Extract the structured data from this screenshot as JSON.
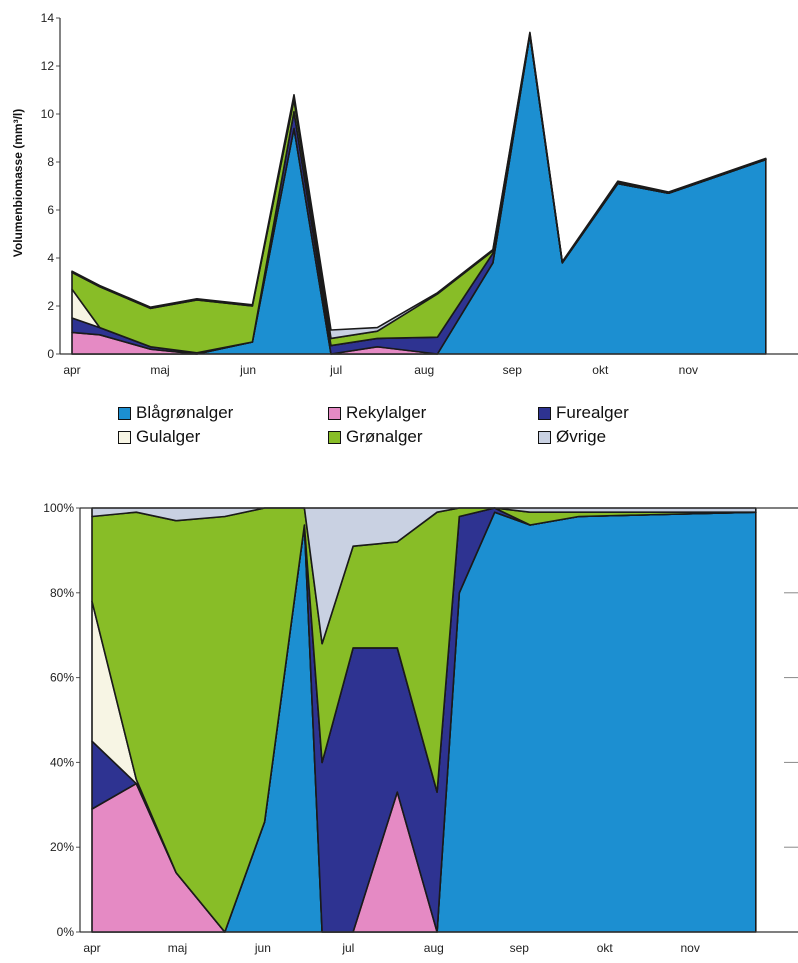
{
  "colors": {
    "Blågrønalger": "#1c8fd1",
    "Rekylalger": "#e58ac4",
    "Furealger": "#2e3391",
    "Gulalger": "#f7f5e4",
    "Grønalger": "#88bd27",
    "Øvrige": "#c9d1e2"
  },
  "legend": {
    "items": [
      "Blågrønalger",
      "Rekylalger",
      "Furealger",
      "Gulalger",
      "Grønalger",
      "Øvrige"
    ],
    "placement": "between charts"
  },
  "chart_data": [
    {
      "type": "area",
      "stacked": true,
      "ylabel": "Volumenbiomasse (mm³/l)",
      "ylim": [
        0,
        14
      ],
      "yticks": [
        "0",
        "2",
        "4",
        "6",
        "8",
        "10",
        "12",
        "14"
      ],
      "month_ticks": [
        "apr",
        "maj",
        "jun",
        "jul",
        "aug",
        "sep",
        "okt",
        "nov"
      ],
      "x": [
        0,
        0.3,
        0.85,
        1.35,
        1.95,
        2.4,
        2.8,
        3.3,
        3.95,
        4.55,
        4.95,
        5.3,
        5.9,
        6.45,
        7.5
      ],
      "series": [
        {
          "name": "Blågrønalger",
          "values": [
            0,
            0,
            0,
            0,
            0.5,
            9.4,
            0,
            0,
            0,
            3.8,
            13.3,
            3.8,
            7.1,
            6.7,
            8.1
          ]
        },
        {
          "name": "Rekylalger",
          "values": [
            0.9,
            0.8,
            0.2,
            0,
            0,
            0,
            0,
            0.3,
            0,
            0,
            0,
            0,
            0,
            0,
            0
          ]
        },
        {
          "name": "Furealger",
          "values": [
            0.6,
            0.3,
            0.1,
            0.05,
            0,
            0.7,
            0.35,
            0.35,
            0.7,
            0.4,
            0,
            0,
            0,
            0,
            0
          ]
        },
        {
          "name": "Gulalger",
          "values": [
            1.2,
            0,
            0,
            0,
            0,
            0,
            0,
            0,
            0,
            0,
            0,
            0,
            0,
            0,
            0
          ]
        },
        {
          "name": "Grønalger",
          "values": [
            0.7,
            1.7,
            1.6,
            2.2,
            1.5,
            0.5,
            0.3,
            0.3,
            1.8,
            0.1,
            0.05,
            0,
            0.05,
            0,
            0
          ]
        },
        {
          "name": "Øvrige",
          "values": [
            0.05,
            0.05,
            0.05,
            0.05,
            0.05,
            0.2,
            0.35,
            0.15,
            0.05,
            0.05,
            0.05,
            0.05,
            0.05,
            0.05,
            0.05
          ]
        }
      ]
    },
    {
      "type": "area",
      "stacked": true,
      "percent": true,
      "ylim": [
        0,
        100
      ],
      "yticks": [
        "0%",
        "20%",
        "40%",
        "60%",
        "80%",
        "100%"
      ],
      "month_ticks": [
        "apr",
        "maj",
        "jun",
        "jul",
        "aug",
        "sep",
        "okt",
        "nov"
      ],
      "x": [
        0,
        0.5,
        0.95,
        1.5,
        1.95,
        2.4,
        2.6,
        2.95,
        3.45,
        3.9,
        4.15,
        4.55,
        4.95,
        5.5,
        7.5
      ],
      "series": [
        {
          "name": "Blågrønalger",
          "values": [
            0,
            0,
            0,
            0,
            26,
            96,
            0,
            0,
            0,
            0,
            80,
            99,
            96,
            98,
            99
          ]
        },
        {
          "name": "Rekylalger",
          "values": [
            29,
            35,
            14,
            0,
            0,
            0,
            0,
            0,
            33,
            0,
            0,
            0,
            0,
            0,
            0
          ]
        },
        {
          "name": "Furealger",
          "values": [
            16,
            0,
            0,
            0,
            0,
            0,
            40,
            67,
            34,
            33,
            18,
            1,
            0,
            0,
            0
          ]
        },
        {
          "name": "Gulalger",
          "values": [
            33,
            1,
            0,
            0,
            0,
            0,
            0,
            0,
            0,
            0,
            0,
            0,
            0,
            0,
            0
          ]
        },
        {
          "name": "Grønalger",
          "values": [
            20,
            63,
            83,
            98,
            74,
            4,
            28,
            24,
            25,
            66,
            2,
            0,
            3,
            1,
            0
          ]
        },
        {
          "name": "Øvrige",
          "values": [
            2,
            1,
            3,
            2,
            0,
            0,
            32,
            9,
            8,
            1,
            0,
            0,
            1,
            1,
            1
          ]
        }
      ]
    }
  ]
}
